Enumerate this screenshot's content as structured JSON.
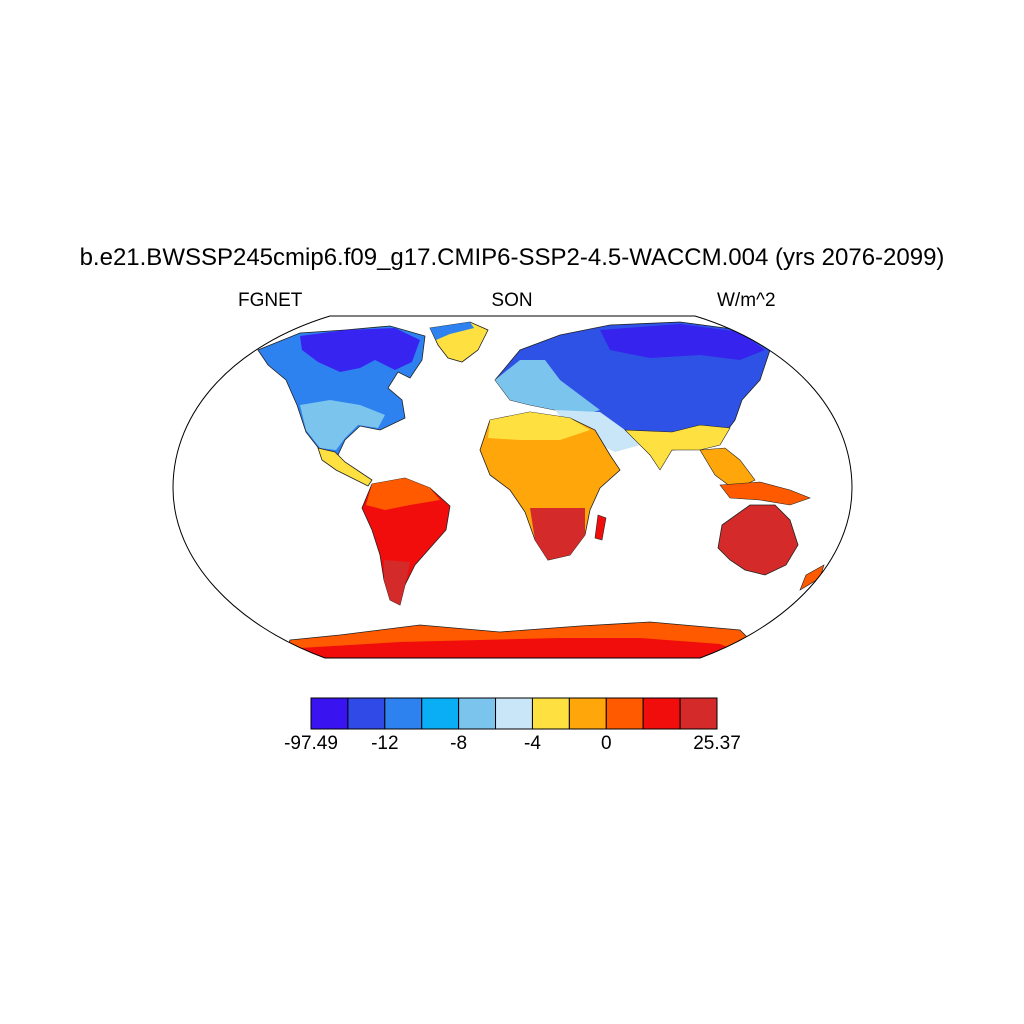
{
  "header": {
    "title": "b.e21.BWSSP245cmip6.f09_g17.CMIP6-SSP2-4.5-WACCM.004 (yrs 2076-2099)",
    "left_label": "FGNET",
    "center_label": "SON",
    "right_label": "W/m^2"
  },
  "map": {
    "projection": "robinson",
    "land_colors": {
      "high_lat_north": "#3a14f0",
      "north": "#2f52e6",
      "north_mid": "#2e82ef",
      "mid": "#0aa6f5",
      "mid_light": "#7bc4ee",
      "pale": "#c8e6f7",
      "subtropic": "#ffe041",
      "tropic_orange": "#ffa60a",
      "tropic_red_orange": "#ff5a00",
      "tropic_red": "#f20d0d",
      "deep_red": "#d42a2a"
    }
  },
  "colorbar": {
    "colors": [
      "#3a14f0",
      "#2f4ae6",
      "#2e82ef",
      "#0aaef5",
      "#7bc4ee",
      "#c8e6f7",
      "#ffe041",
      "#ffa60a",
      "#ff5a00",
      "#f20d0d",
      "#d42a2a"
    ],
    "labels": [
      {
        "text": "-97.49",
        "boundary": 0
      },
      {
        "text": "-12",
        "boundary": 2
      },
      {
        "text": "-8",
        "boundary": 4
      },
      {
        "text": "-4",
        "boundary": 6
      },
      {
        "text": "0",
        "boundary": 8
      },
      {
        "text": "25.37",
        "boundary": 11
      }
    ]
  }
}
